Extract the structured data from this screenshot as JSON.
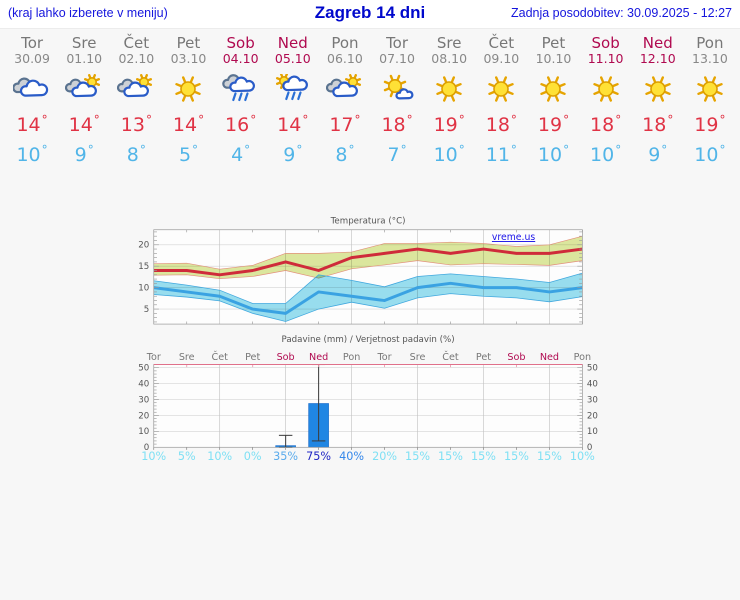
{
  "header": {
    "hint": "(kraj lahko izberete v meniju)",
    "title": "Zagreb 14 dni",
    "updated": "Zadnja posodobitev: 30.09.2025 - 12:27"
  },
  "deg_symbol": "°",
  "days": [
    {
      "name": "Tor",
      "date": "30.09",
      "weekend": false,
      "icon": "cloudy",
      "tmax": "14",
      "tmin": "10",
      "pop": "10%",
      "pop_color": "#7fe0f4"
    },
    {
      "name": "Sre",
      "date": "01.10",
      "weekend": false,
      "icon": "sun-cloud",
      "tmax": "14",
      "tmin": "9",
      "pop": "5%",
      "pop_color": "#7fe0f4"
    },
    {
      "name": "Čet",
      "date": "02.10",
      "weekend": false,
      "icon": "sun-cloud",
      "tmax": "13",
      "tmin": "8",
      "pop": "10%",
      "pop_color": "#7fe0f4"
    },
    {
      "name": "Pet",
      "date": "03.10",
      "weekend": false,
      "icon": "sunny",
      "tmax": "14",
      "tmin": "5",
      "pop": "0%",
      "pop_color": "#7fe0f4"
    },
    {
      "name": "Sob",
      "date": "04.10",
      "weekend": true,
      "icon": "rain",
      "tmax": "16",
      "tmin": "4",
      "pop": "35%",
      "pop_color": "#5aabec"
    },
    {
      "name": "Ned",
      "date": "05.10",
      "weekend": true,
      "icon": "sun-rain",
      "tmax": "14",
      "tmin": "9",
      "pop": "75%",
      "pop_color": "#2127c4"
    },
    {
      "name": "Pon",
      "date": "06.10",
      "weekend": false,
      "icon": "sun-cloud",
      "tmax": "17",
      "tmin": "8",
      "pop": "40%",
      "pop_color": "#3487ea"
    },
    {
      "name": "Tor",
      "date": "07.10",
      "weekend": false,
      "icon": "sun-small-cloud",
      "tmax": "18",
      "tmin": "7",
      "pop": "20%",
      "pop_color": "#7fe0f4"
    },
    {
      "name": "Sre",
      "date": "08.10",
      "weekend": false,
      "icon": "sunny",
      "tmax": "19",
      "tmin": "10",
      "pop": "15%",
      "pop_color": "#7fe0f4"
    },
    {
      "name": "Čet",
      "date": "09.10",
      "weekend": false,
      "icon": "sunny",
      "tmax": "18",
      "tmin": "11",
      "pop": "15%",
      "pop_color": "#7fe0f4"
    },
    {
      "name": "Pet",
      "date": "10.10",
      "weekend": false,
      "icon": "sunny",
      "tmax": "19",
      "tmin": "10",
      "pop": "15%",
      "pop_color": "#7fe0f4"
    },
    {
      "name": "Sob",
      "date": "11.10",
      "weekend": true,
      "icon": "sunny",
      "tmax": "18",
      "tmin": "10",
      "pop": "15%",
      "pop_color": "#7fe0f4"
    },
    {
      "name": "Ned",
      "date": "12.10",
      "weekend": true,
      "icon": "sunny",
      "tmax": "18",
      "tmin": "9",
      "pop": "15%",
      "pop_color": "#7fe0f4"
    },
    {
      "name": "Pon",
      "date": "13.10",
      "weekend": false,
      "icon": "sunny",
      "tmax": "19",
      "tmin": "10",
      "pop": "10%",
      "pop_color": "#7fe0f4"
    }
  ],
  "chart_data": [
    {
      "type": "line",
      "title": "Temperatura (°C)",
      "watermark": "vreme.us",
      "categories": [
        "Tor 30.09",
        "Sre 01.10",
        "Čet 02.10",
        "Pet 03.10",
        "Sob 04.10",
        "Ned 05.10",
        "Pon 06.10",
        "Tor 07.10",
        "Sre 08.10",
        "Čet 09.10",
        "Pet 10.10",
        "Sob 11.10",
        "Ned 12.10",
        "Pon 13.10"
      ],
      "series": [
        {
          "name": "tmax",
          "values": [
            14,
            14,
            13,
            14,
            16,
            14,
            17,
            18,
            19,
            18,
            19,
            18,
            18,
            19
          ]
        },
        {
          "name": "tmax_hi",
          "values": [
            15.6,
            15.7,
            14.3,
            15.2,
            18.0,
            18.0,
            18.3,
            20.3,
            20.3,
            20.6,
            20.3,
            19.6,
            20.0,
            22.0
          ]
        },
        {
          "name": "tmax_lo",
          "values": [
            12.9,
            13.0,
            12.1,
            12.6,
            14.0,
            12.2,
            14.4,
            15.3,
            16.3,
            15.3,
            15.6,
            15.4,
            15.2,
            16.3
          ]
        },
        {
          "name": "tmin",
          "values": [
            10,
            9,
            8,
            5,
            4,
            9,
            8,
            7,
            10,
            11,
            10,
            10,
            9,
            10
          ]
        },
        {
          "name": "tmin_hi",
          "values": [
            11.6,
            10.6,
            9.4,
            6.3,
            6.3,
            13.0,
            11.7,
            10.2,
            12.6,
            13.2,
            12.6,
            12.0,
            11.2,
            13.4
          ]
        },
        {
          "name": "tmin_lo",
          "values": [
            8.4,
            7.8,
            6.9,
            4.0,
            2.1,
            5.0,
            6.6,
            5.2,
            7.6,
            8.6,
            8.0,
            7.6,
            6.7,
            7.9
          ]
        }
      ],
      "ylim": [
        1.5,
        23.5
      ],
      "yticks": [
        5,
        10,
        15,
        20
      ],
      "grid": true,
      "legend": "none"
    },
    {
      "type": "bar",
      "title": "Padavine (mm) / Verjetnost padavin (%)",
      "categories": [
        "Tor",
        "Sre",
        "Čet",
        "Pet",
        "Sob",
        "Ned",
        "Pon",
        "Tor",
        "Sre",
        "Čet",
        "Pet",
        "Sob",
        "Ned",
        "Pon"
      ],
      "values": [
        0,
        0,
        0,
        0,
        1,
        27.5,
        0,
        0,
        0,
        0,
        0,
        0,
        0,
        0
      ],
      "whiskers": [
        null,
        null,
        null,
        null,
        [
          0,
          7.5
        ],
        [
          4,
          52
        ],
        null,
        null,
        null,
        null,
        null,
        null,
        null,
        null
      ],
      "probability_pct": [
        10,
        5,
        10,
        0,
        35,
        75,
        40,
        20,
        15,
        15,
        15,
        15,
        15,
        10
      ],
      "ylim": [
        0,
        52
      ],
      "yticks": [
        0,
        10,
        20,
        30,
        40,
        50
      ],
      "grid": true
    }
  ],
  "colors": {
    "weekend": "#b00a50",
    "day_label": "#777777",
    "date_label": "#888888",
    "tmax_text": "#e03345",
    "tmin_text": "#51b5e8",
    "red_line": "#cf2b3a",
    "green_band": "#dde89e",
    "green_band_edge": "#e2907c",
    "blue_line": "#3aa2e2",
    "blue_band": "#99dff0",
    "blue_band_edge": "#41a8de",
    "bar_fill": "#2086e3",
    "bar_edge": "#1669c9",
    "whisker": "#3c3c3c",
    "pink_axis": "#e0708a",
    "watermark_blue": "#1a12e8"
  }
}
